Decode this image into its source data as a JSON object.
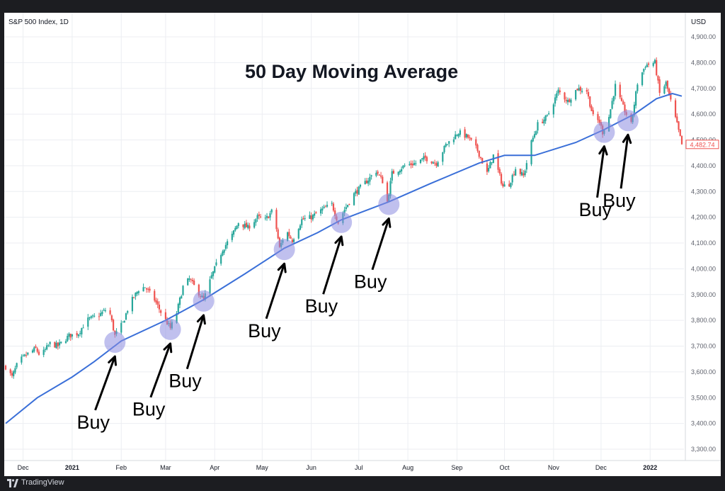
{
  "header": {
    "symbol": "S&P 500 Index, 1D",
    "currency": "USD"
  },
  "footer": {
    "brand": "TradingView"
  },
  "colors": {
    "up": "#26a69a",
    "down": "#ef5350",
    "ma_line": "#3a6fd8",
    "highlight": "#8c8ce0",
    "grid": "#eceef2",
    "axis_text": "#5d606b",
    "annotation": "#000000"
  },
  "chart_data": {
    "type": "candlestick",
    "title": "50 Day Moving Average",
    "ylabel": "USD",
    "ylim": [
      3250,
      4950
    ],
    "y_ticks": [
      3300,
      3400,
      3500,
      3600,
      3700,
      3800,
      3900,
      4000,
      4100,
      4200,
      4300,
      4400,
      4500,
      4600,
      4700,
      4800,
      4900
    ],
    "y_tick_labels": [
      "3,300.00",
      "3,400.00",
      "3,500.00",
      "3,600.00",
      "3,700.00",
      "3,800.00",
      "3,900.00",
      "4,000.00",
      "4,100.00",
      "4,200.00",
      "4,300.00",
      "4,400.00",
      "4,500.00",
      "4,600.00",
      "4,700.00",
      "4,800.00",
      "4,900.00"
    ],
    "x_start": "2020-11-20",
    "x_end": "2022-01-21",
    "x_ticks": [
      {
        "label": "Dec",
        "date": "2020-12-01"
      },
      {
        "label": "2021",
        "date": "2021-01-01"
      },
      {
        "label": "Feb",
        "date": "2021-02-01"
      },
      {
        "label": "Mar",
        "date": "2021-03-01"
      },
      {
        "label": "Apr",
        "date": "2021-04-01"
      },
      {
        "label": "May",
        "date": "2021-05-01"
      },
      {
        "label": "Jun",
        "date": "2021-06-01"
      },
      {
        "label": "Jul",
        "date": "2021-07-01"
      },
      {
        "label": "Aug",
        "date": "2021-08-01"
      },
      {
        "label": "Sep",
        "date": "2021-09-01"
      },
      {
        "label": "Oct",
        "date": "2021-10-01"
      },
      {
        "label": "Nov",
        "date": "2021-11-01"
      },
      {
        "label": "Dec",
        "date": "2021-12-01"
      },
      {
        "label": "2022",
        "date": "2022-01-01"
      }
    ],
    "price_path": [
      [
        "2020-11-20",
        3620
      ],
      [
        "2020-11-24",
        3580
      ],
      [
        "2020-11-28",
        3640
      ],
      [
        "2020-12-04",
        3670
      ],
      [
        "2020-12-09",
        3690
      ],
      [
        "2020-12-12",
        3660
      ],
      [
        "2020-12-18",
        3710
      ],
      [
        "2020-12-23",
        3700
      ],
      [
        "2020-12-30",
        3740
      ],
      [
        "2021-01-05",
        3750
      ],
      [
        "2021-01-10",
        3800
      ],
      [
        "2021-01-18",
        3820
      ],
      [
        "2021-01-24",
        3850
      ],
      [
        "2021-01-28",
        3740
      ],
      [
        "2021-02-02",
        3790
      ],
      [
        "2021-02-06",
        3860
      ],
      [
        "2021-02-12",
        3920
      ],
      [
        "2021-02-16",
        3930
      ],
      [
        "2021-02-22",
        3880
      ],
      [
        "2021-02-27",
        3820
      ],
      [
        "2021-03-04",
        3770
      ],
      [
        "2021-03-08",
        3830
      ],
      [
        "2021-03-12",
        3930
      ],
      [
        "2021-03-16",
        3960
      ],
      [
        "2021-03-21",
        3915
      ],
      [
        "2021-03-25",
        3880
      ],
      [
        "2021-03-30",
        3970
      ],
      [
        "2021-04-06",
        4075
      ],
      [
        "2021-04-12",
        4130
      ],
      [
        "2021-04-16",
        4180
      ],
      [
        "2021-04-22",
        4160
      ],
      [
        "2021-04-28",
        4200
      ],
      [
        "2021-05-03",
        4190
      ],
      [
        "2021-05-08",
        4230
      ],
      [
        "2021-05-12",
        4080
      ],
      [
        "2021-05-16",
        4150
      ],
      [
        "2021-05-20",
        4110
      ],
      [
        "2021-05-26",
        4190
      ],
      [
        "2021-06-01",
        4200
      ],
      [
        "2021-06-08",
        4230
      ],
      [
        "2021-06-14",
        4250
      ],
      [
        "2021-06-18",
        4180
      ],
      [
        "2021-06-22",
        4230
      ],
      [
        "2021-06-28",
        4290
      ],
      [
        "2021-07-06",
        4340
      ],
      [
        "2021-07-12",
        4380
      ],
      [
        "2021-07-16",
        4340
      ],
      [
        "2021-07-19",
        4260
      ],
      [
        "2021-07-22",
        4370
      ],
      [
        "2021-07-30",
        4400
      ],
      [
        "2021-08-06",
        4410
      ],
      [
        "2021-08-12",
        4430
      ],
      [
        "2021-08-19",
        4410
      ],
      [
        "2021-08-25",
        4480
      ],
      [
        "2021-09-02",
        4530
      ],
      [
        "2021-09-08",
        4510
      ],
      [
        "2021-09-14",
        4460
      ],
      [
        "2021-09-20",
        4370
      ],
      [
        "2021-09-24",
        4440
      ],
      [
        "2021-09-30",
        4320
      ],
      [
        "2021-10-04",
        4330
      ],
      [
        "2021-10-08",
        4390
      ],
      [
        "2021-10-13",
        4360
      ],
      [
        "2021-10-18",
        4490
      ],
      [
        "2021-10-22",
        4560
      ],
      [
        "2021-10-28",
        4590
      ],
      [
        "2021-11-04",
        4690
      ],
      [
        "2021-11-10",
        4650
      ],
      [
        "2021-11-16",
        4700
      ],
      [
        "2021-11-22",
        4690
      ],
      [
        "2021-11-26",
        4590
      ],
      [
        "2021-11-30",
        4570
      ],
      [
        "2021-12-02",
        4530
      ],
      [
        "2021-12-06",
        4590
      ],
      [
        "2021-12-10",
        4710
      ],
      [
        "2021-12-14",
        4640
      ],
      [
        "2021-12-20",
        4560
      ],
      [
        "2021-12-24",
        4720
      ],
      [
        "2021-12-29",
        4790
      ],
      [
        "2022-01-04",
        4800
      ],
      [
        "2022-01-07",
        4680
      ],
      [
        "2022-01-11",
        4720
      ],
      [
        "2022-01-14",
        4650
      ],
      [
        "2022-01-18",
        4560
      ],
      [
        "2022-01-21",
        4482
      ]
    ],
    "moving_average": {
      "name": "50 Day Moving Average",
      "points": [
        [
          "2020-11-20",
          3400
        ],
        [
          "2020-12-10",
          3500
        ],
        [
          "2021-01-01",
          3580
        ],
        [
          "2021-01-15",
          3640
        ],
        [
          "2021-02-01",
          3720
        ],
        [
          "2021-03-01",
          3800
        ],
        [
          "2021-03-25",
          3880
        ],
        [
          "2021-04-20",
          3980
        ],
        [
          "2021-05-15",
          4080
        ],
        [
          "2021-06-05",
          4140
        ],
        [
          "2021-06-20",
          4190
        ],
        [
          "2021-07-20",
          4260
        ],
        [
          "2021-08-15",
          4330
        ],
        [
          "2021-09-15",
          4410
        ],
        [
          "2021-10-01",
          4440
        ],
        [
          "2021-10-20",
          4440
        ],
        [
          "2021-11-15",
          4490
        ],
        [
          "2021-12-03",
          4540
        ],
        [
          "2021-12-22",
          4600
        ],
        [
          "2022-01-05",
          4660
        ],
        [
          "2022-01-15",
          4680
        ],
        [
          "2022-01-21",
          4670
        ]
      ]
    },
    "last_price": 4482.74,
    "last_price_label": "4,482.74",
    "annotations": [
      {
        "label": "Buy",
        "date": "2021-01-28",
        "price": 3715,
        "text_date": "2021-01-12",
        "text_price": 3380
      },
      {
        "label": "Buy",
        "date": "2021-03-04",
        "price": 3765,
        "text_date": "2021-02-16",
        "text_price": 3430
      },
      {
        "label": "Buy",
        "date": "2021-03-25",
        "price": 3875,
        "text_date": "2021-03-11",
        "text_price": 3540
      },
      {
        "label": "Buy",
        "date": "2021-05-15",
        "price": 4075,
        "text_date": "2021-04-30",
        "text_price": 3735
      },
      {
        "label": "Buy",
        "date": "2021-06-20",
        "price": 4180,
        "text_date": "2021-06-05",
        "text_price": 3830
      },
      {
        "label": "Buy",
        "date": "2021-07-20",
        "price": 4250,
        "text_date": "2021-07-06",
        "text_price": 3925
      },
      {
        "label": "Buy",
        "date": "2021-12-03",
        "price": 4530,
        "text_date": "2021-11-25",
        "text_price": 4205
      },
      {
        "label": "Buy",
        "date": "2021-12-18",
        "price": 4575,
        "text_date": "2021-12-10",
        "text_price": 4240
      }
    ]
  }
}
